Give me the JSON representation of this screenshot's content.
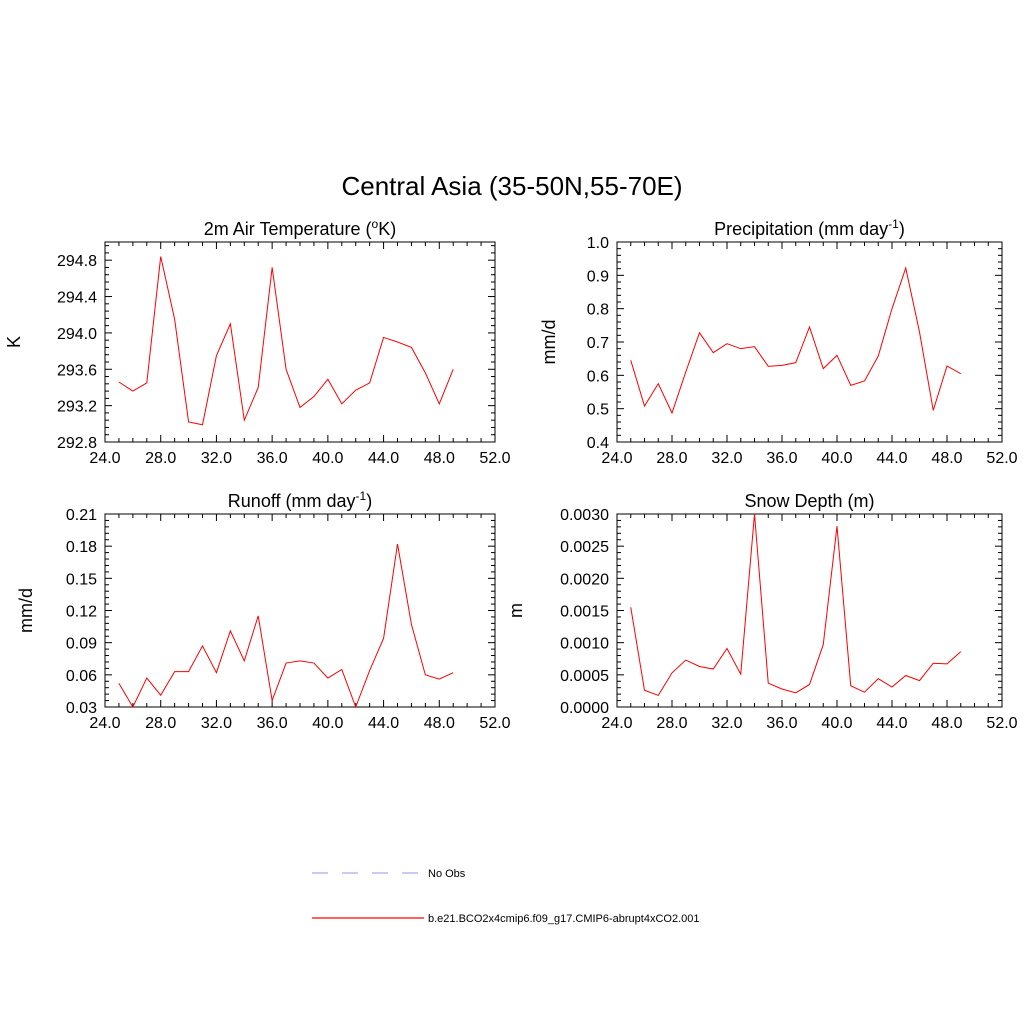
{
  "title": "Central Asia (35-50N,55-70E)",
  "colors": {
    "model": "#ff0000",
    "obs": "#aaaaee"
  },
  "legend": [
    {
      "label": "No Obs",
      "style": "dashed",
      "color": "#aaaaee"
    },
    {
      "label": "b.e21.BCO2x4cmip6.f09_g17.CMIP6-abrupt4xCO2.001",
      "style": "solid",
      "color": "#ff0000"
    }
  ],
  "chart_data": [
    {
      "type": "line",
      "title_main": "2m Air Temperature (",
      "title_sup": "o",
      "title_rest": "K)",
      "ylabel": "K",
      "xlim": [
        24,
        52
      ],
      "ylim": [
        292.8,
        295.0
      ],
      "xticks": [
        "24.0",
        "28.0",
        "32.0",
        "36.0",
        "40.0",
        "44.0",
        "48.0",
        "52.0"
      ],
      "yticks": [
        "292.8",
        "293.2",
        "293.6",
        "294.0",
        "294.4",
        "294.8"
      ],
      "x": [
        25,
        26,
        27,
        28,
        29,
        30,
        31,
        32,
        33,
        34,
        35,
        36,
        37,
        38,
        39,
        40,
        41,
        42,
        43,
        44,
        45,
        46,
        47,
        48,
        49
      ],
      "series": [
        {
          "values": [
            293.46,
            293.36,
            293.45,
            294.84,
            294.15,
            293.02,
            292.99,
            293.75,
            294.1,
            293.04,
            293.4,
            294.72,
            293.6,
            293.18,
            293.3,
            293.49,
            293.22,
            293.37,
            293.45,
            293.95,
            293.9,
            293.84,
            293.56,
            293.22,
            293.6
          ]
        }
      ]
    },
    {
      "type": "line",
      "title_main": "Precipitation (mm day",
      "title_sup": "-1",
      "title_rest": ")",
      "ylabel": "mm/d",
      "xlim": [
        24,
        52
      ],
      "ylim": [
        0.4,
        1.0
      ],
      "xticks": [
        "24.0",
        "28.0",
        "32.0",
        "36.0",
        "40.0",
        "44.0",
        "48.0",
        "52.0"
      ],
      "yticks": [
        "0.4",
        "0.5",
        "0.6",
        "0.7",
        "0.8",
        "0.9",
        "1.0"
      ],
      "x": [
        25,
        26,
        27,
        28,
        29,
        30,
        31,
        32,
        33,
        34,
        35,
        36,
        37,
        38,
        39,
        40,
        41,
        42,
        43,
        44,
        45,
        46,
        47,
        48,
        49
      ],
      "series": [
        {
          "values": [
            0.645,
            0.508,
            0.575,
            0.487,
            0.61,
            0.728,
            0.668,
            0.695,
            0.68,
            0.686,
            0.627,
            0.63,
            0.638,
            0.745,
            0.62,
            0.66,
            0.57,
            0.583,
            0.658,
            0.8,
            0.922,
            0.73,
            0.495,
            0.628,
            0.605
          ]
        }
      ]
    },
    {
      "type": "line",
      "title_main": "Runoff (mm day",
      "title_sup": "-1",
      "title_rest": ")",
      "ylabel": "mm/d",
      "xlim": [
        24,
        52
      ],
      "ylim": [
        0.03,
        0.21
      ],
      "xticks": [
        "24.0",
        "28.0",
        "32.0",
        "36.0",
        "40.0",
        "44.0",
        "48.0",
        "52.0"
      ],
      "yticks": [
        "0.03",
        "0.06",
        "0.09",
        "0.12",
        "0.15",
        "0.18",
        "0.21"
      ],
      "x": [
        25,
        26,
        27,
        28,
        29,
        30,
        31,
        32,
        33,
        34,
        35,
        36,
        37,
        38,
        39,
        40,
        41,
        42,
        43,
        44,
        45,
        46,
        47,
        48,
        49
      ],
      "series": [
        {
          "values": [
            0.052,
            0.03,
            0.057,
            0.041,
            0.063,
            0.063,
            0.087,
            0.062,
            0.101,
            0.073,
            0.115,
            0.036,
            0.071,
            0.073,
            0.071,
            0.057,
            0.065,
            0.03,
            0.064,
            0.094,
            0.182,
            0.107,
            0.06,
            0.056,
            0.062
          ]
        }
      ]
    },
    {
      "type": "line",
      "title_main": "Snow Depth (m)",
      "title_sup": "",
      "title_rest": "",
      "ylabel": "m",
      "xlim": [
        24,
        52
      ],
      "ylim": [
        0.0,
        0.003
      ],
      "xticks": [
        "24.0",
        "28.0",
        "32.0",
        "36.0",
        "40.0",
        "44.0",
        "48.0",
        "52.0"
      ],
      "yticks": [
        "0.0000",
        "0.0005",
        "0.0010",
        "0.0015",
        "0.0020",
        "0.0025",
        "0.0030"
      ],
      "x": [
        25,
        26,
        27,
        28,
        29,
        30,
        31,
        32,
        33,
        34,
        35,
        36,
        37,
        38,
        39,
        40,
        41,
        42,
        43,
        44,
        45,
        46,
        47,
        48,
        49
      ],
      "series": [
        {
          "values": [
            0.00155,
            0.00026,
            0.00018,
            0.00053,
            0.00073,
            0.00063,
            0.00059,
            0.00091,
            0.00051,
            0.003,
            0.00037,
            0.00028,
            0.00022,
            0.00035,
            0.00097,
            0.00281,
            0.00033,
            0.00023,
            0.00044,
            0.00031,
            0.00049,
            0.00041,
            0.00068,
            0.00067,
            0.00086
          ]
        }
      ]
    }
  ]
}
